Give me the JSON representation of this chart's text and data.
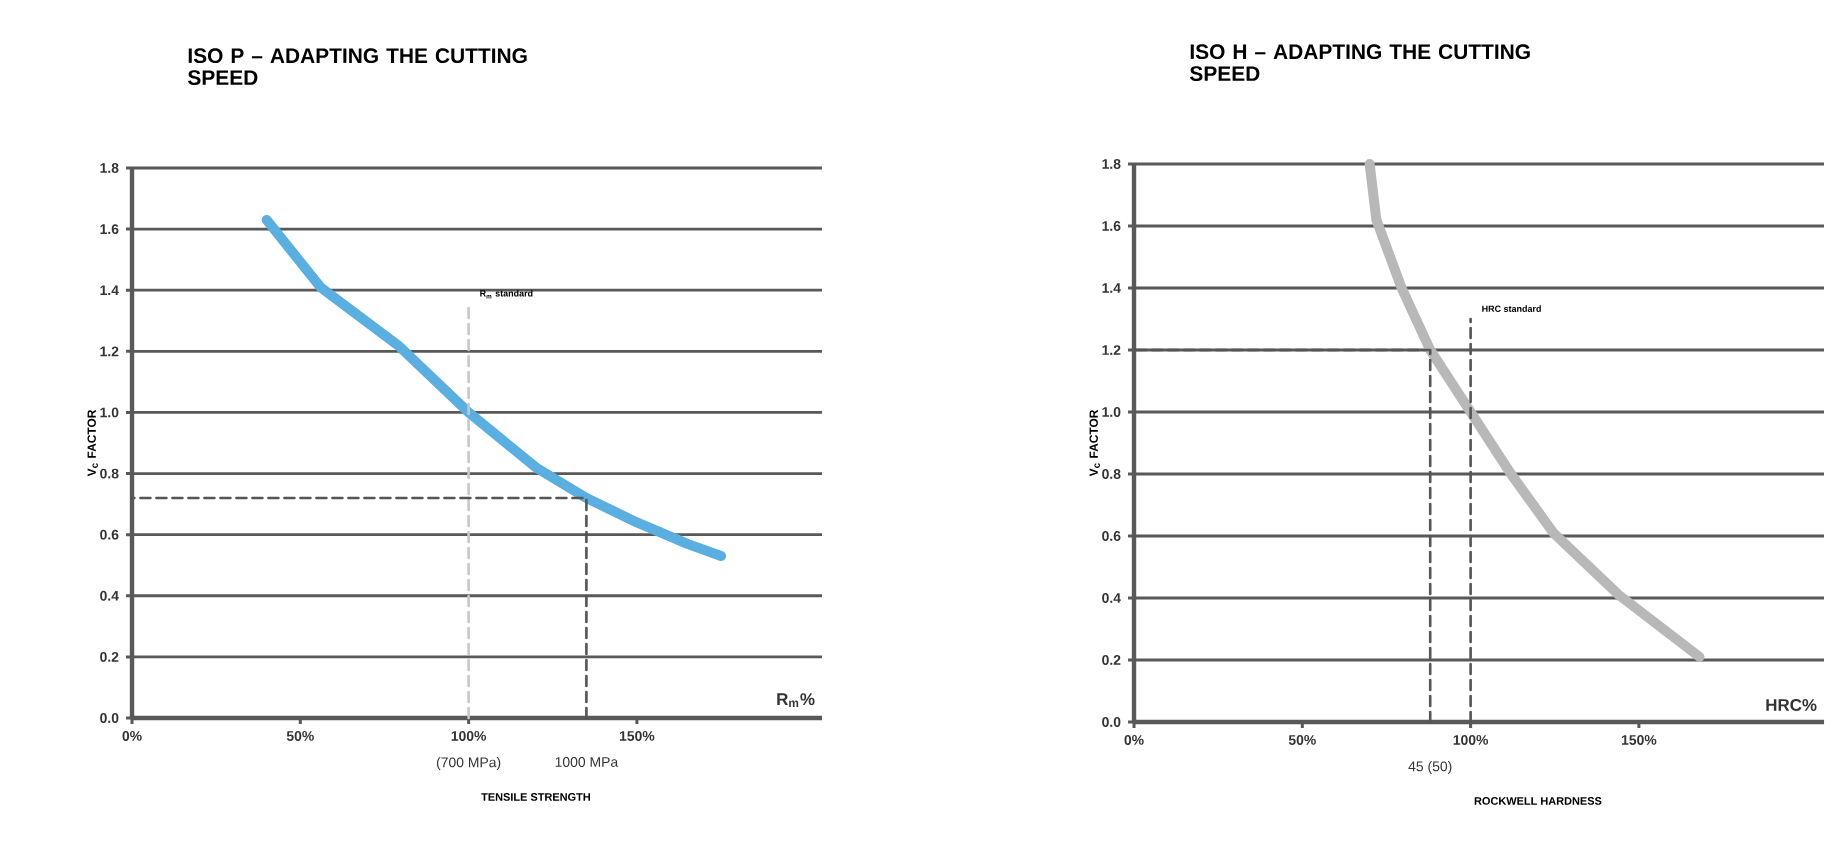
{
  "chart_data": [
    {
      "type": "line",
      "title": "ISO P – ADAPTING THE CUTTING SPEED",
      "xlabel": "TENSILE STRENGTH",
      "ylabel": "V$_{c}$ FACTOR",
      "xlim": [
        0,
        205
      ],
      "ylim": [
        0,
        1.8
      ],
      "xticks": [
        {
          "value": 0,
          "label": "0%"
        },
        {
          "value": 50,
          "label": "50%"
        },
        {
          "value": 100,
          "label": "100%"
        },
        {
          "value": 150,
          "label": "150%"
        }
      ],
      "yticks": [
        {
          "value": 0,
          "label": "0.0"
        },
        {
          "value": 0.2,
          "label": "0.2"
        },
        {
          "value": 0.4,
          "label": "0.4"
        },
        {
          "value": 0.6,
          "label": "0.6"
        },
        {
          "value": 0.8,
          "label": "0.8"
        },
        {
          "value": 1.0,
          "label": "1.0"
        },
        {
          "value": 1.2,
          "label": "1.2"
        },
        {
          "value": 1.4,
          "label": "1.4"
        },
        {
          "value": 1.6,
          "label": "1.6"
        },
        {
          "value": 1.8,
          "label": "1.8"
        }
      ],
      "grid": "y",
      "series": [
        {
          "color": "#5aaee0",
          "line_style": "solid",
          "x": [
            40,
            56,
            79,
            100,
            120,
            135,
            150,
            165,
            175
          ],
          "values": [
            1.63,
            1.41,
            1.22,
            1.0,
            0.82,
            0.72,
            0.64,
            0.57,
            0.53
          ]
        },
        {
          "color": "#c8c8c8",
          "line_style": "dashed",
          "x": [
            100,
            100
          ],
          "values": [
            0,
            1.35
          ]
        },
        {
          "color": "#555555",
          "line_style": "dashed",
          "x": [
            135,
            135,
            0
          ],
          "values": [
            0,
            0.72,
            0.72
          ]
        }
      ],
      "annotations": [
        {
          "text": "R$_{m}$ standard",
          "x": 100,
          "y": 1.35
        },
        {
          "text": "(700 MPa)",
          "x": 100,
          "y": 0
        },
        {
          "text": "1000 MPa",
          "x": 135,
          "y": 0
        },
        "R$_{m}$%"
      ]
    },
    {
      "type": "line",
      "title": "ISO H – ADAPTING THE CUTTING SPEED",
      "xlabel": "ROCKWELL HARDNESS",
      "ylabel": "V$_{c}$ FACTOR",
      "xlim": [
        0,
        205
      ],
      "ylim": [
        0,
        1.8
      ],
      "xticks": [
        {
          "value": 0,
          "label": "0%"
        },
        {
          "value": 50,
          "label": "50%"
        },
        {
          "value": 100,
          "label": "100%"
        },
        {
          "value": 150,
          "label": "150%"
        }
      ],
      "yticks": [
        {
          "value": 0,
          "label": "0.0"
        },
        {
          "value": 0.2,
          "label": "0.2"
        },
        {
          "value": 0.4,
          "label": "0.4"
        },
        {
          "value": 0.6,
          "label": "0.6"
        },
        {
          "value": 0.8,
          "label": "0.8"
        },
        {
          "value": 1.0,
          "label": "1.0"
        },
        {
          "value": 1.2,
          "label": "1.2"
        },
        {
          "value": 1.4,
          "label": "1.4"
        },
        {
          "value": 1.6,
          "label": "1.6"
        },
        {
          "value": 1.8,
          "label": "1.8"
        }
      ],
      "grid": "y",
      "series": [
        {
          "color": "#b8b8b8",
          "line_style": "solid",
          "x": [
            70,
            72,
            79.5,
            88,
            100,
            112,
            124.6,
            144,
            168
          ],
          "values": [
            1.8,
            1.62,
            1.4,
            1.2,
            1.0,
            0.8,
            0.61,
            0.41,
            0.21
          ]
        },
        {
          "color": "#555555",
          "line_style": "dashed",
          "x": [
            100,
            100
          ],
          "values": [
            0,
            1.3
          ]
        },
        {
          "color": "#555555",
          "line_style": "dashed",
          "x": [
            88,
            88,
            0
          ],
          "values": [
            0,
            1.2,
            1.2
          ]
        }
      ],
      "annotations": [
        {
          "text": "HRC standard",
          "x": 100,
          "y": 1.3
        },
        {
          "text": "45 (50)",
          "x": 88,
          "y": 0
        },
        "HRC%"
      ]
    }
  ]
}
